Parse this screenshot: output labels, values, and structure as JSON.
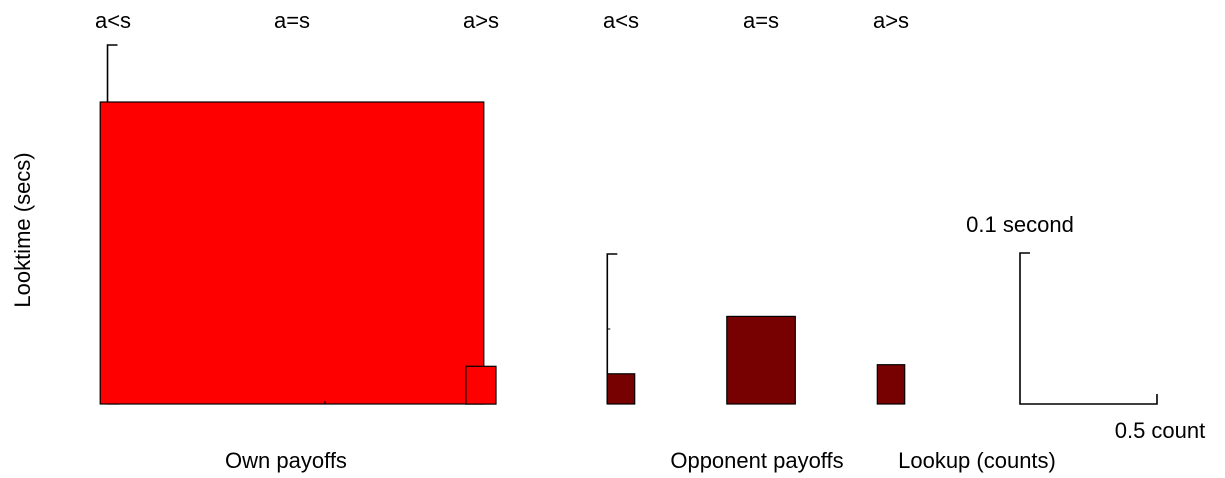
{
  "chart_data": {
    "type": "bar",
    "ylabel": "Looktime (secs)",
    "groups": [
      {
        "name": "Own payoffs",
        "color": "#ff0000",
        "bars": [
          {
            "category": "a<s",
            "lookup_counts": 0.04,
            "looktime_secs": 0.05
          },
          {
            "category": "a=s",
            "lookup_counts": 1.4,
            "looktime_secs": 0.2
          },
          {
            "category": "a>s",
            "lookup_counts": 0.11,
            "looktime_secs": 0.025
          }
        ]
      },
      {
        "name": "Opponent payoffs",
        "color": "#770000",
        "bars": [
          {
            "category": "a<s",
            "lookup_counts": 0.1,
            "looktime_secs": 0.02
          },
          {
            "category": "a=s",
            "lookup_counts": 0.25,
            "looktime_secs": 0.058
          },
          {
            "category": "a>s",
            "lookup_counts": 0.1,
            "looktime_secs": 0.026
          }
        ]
      }
    ],
    "legend": {
      "x_label": "Lookup (counts)",
      "x_scale_label": "0.5 count",
      "y_scale_label": "0.1 second"
    }
  }
}
